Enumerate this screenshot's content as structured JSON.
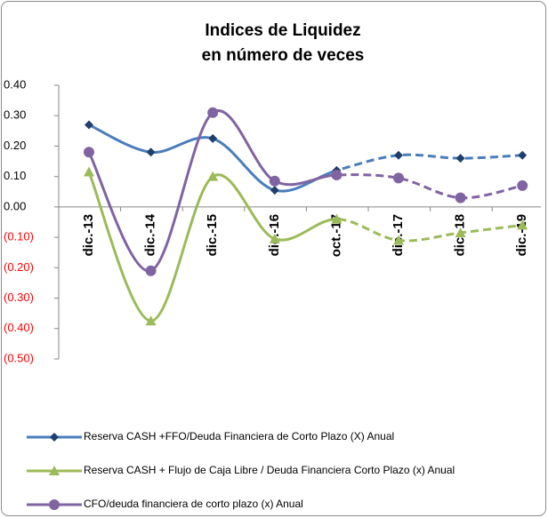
{
  "chart_data": {
    "type": "line",
    "title": [
      "Indices de Liquidez",
      "en número de veces"
    ],
    "categories": [
      "dic.-13",
      "dic.-14",
      "dic.-15",
      "dic.-16",
      "oct.-17",
      "dic.-17",
      "dic.-18",
      "dic.-19"
    ],
    "series": [
      {
        "name": "Reserva CASH +FFO/Deuda Financiera de Corto Plazo (X) Anual",
        "color": "#4a7ebb",
        "marker_color": "#1f3f6e",
        "marker": "diamond",
        "values": [
          0.27,
          0.18,
          0.225,
          0.055,
          0.12,
          0.17,
          0.16,
          0.17
        ]
      },
      {
        "name": "Reserva CASH + Flujo de Caja Libre / Deuda Financiera Corto Plazo  (x) Anual",
        "color": "#9bbb59",
        "marker_color": "#9bbb59",
        "marker": "triangle",
        "values": [
          0.115,
          -0.375,
          0.1,
          -0.105,
          -0.04,
          -0.11,
          -0.085,
          -0.06
        ]
      },
      {
        "name": "CFO/deuda financiera de corto plazo (x) Anual",
        "color": "#8064a2",
        "marker_color": "#8064a2",
        "marker": "circle",
        "values": [
          0.18,
          -0.21,
          0.31,
          0.085,
          0.105,
          0.095,
          0.03,
          0.07
        ]
      }
    ],
    "ylim": [
      -0.5,
      0.4
    ],
    "yticks": [
      {
        "value": 0.4,
        "label": "0.40"
      },
      {
        "value": 0.3,
        "label": "0.30"
      },
      {
        "value": 0.2,
        "label": "0.20"
      },
      {
        "value": 0.1,
        "label": "0.10"
      },
      {
        "value": 0,
        "label": "0.00"
      },
      {
        "value": -0.1,
        "label": "(0.10)"
      },
      {
        "value": -0.2,
        "label": "(0.20)"
      },
      {
        "value": -0.3,
        "label": "(0.30)"
      },
      {
        "value": -0.4,
        "label": "(0.40)"
      },
      {
        "value": -0.5,
        "label": "(0.50)"
      }
    ],
    "negative_tick_color": "#ff0000",
    "dashed_from": "oct.-17",
    "grid": false,
    "legend": "bottom"
  }
}
